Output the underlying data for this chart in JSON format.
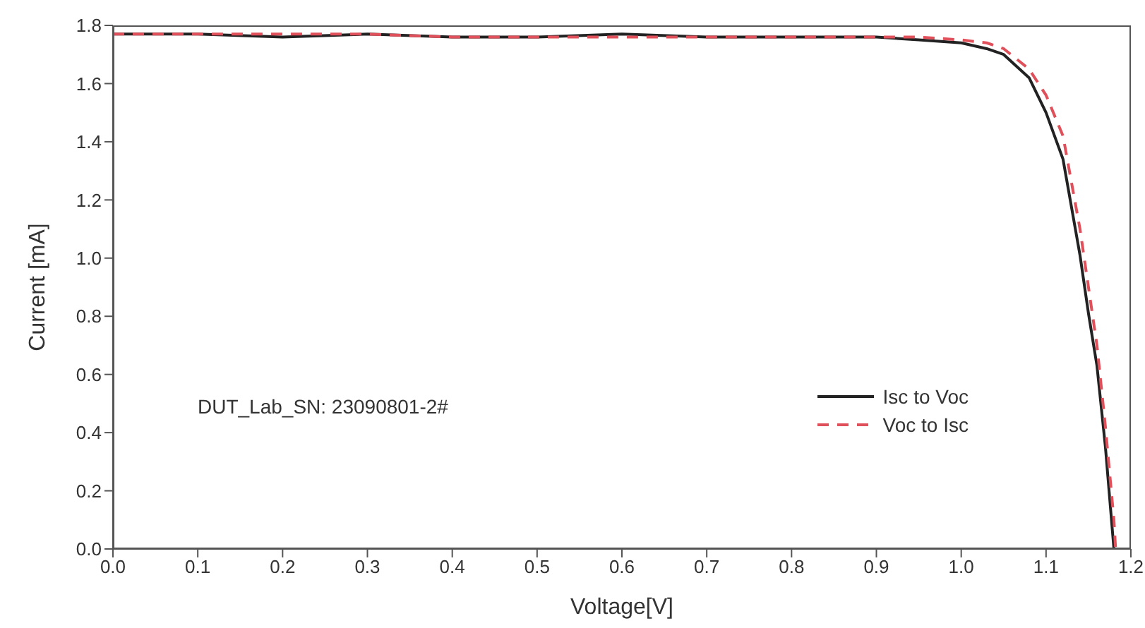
{
  "chart_data": {
    "type": "line",
    "xlabel": "Voltage[V]",
    "ylabel": "Current [mA]",
    "xlim": [
      0,
      1.2
    ],
    "xticks": [
      {
        "value": 0,
        "label": "0.0"
      },
      0.1,
      0.2,
      0.3,
      0.4,
      0.5,
      0.6,
      0.7,
      0.8,
      0.9,
      {
        "value": 1,
        "label": "1.0"
      },
      1.1,
      1.2
    ],
    "ylim": [
      0,
      1.8
    ],
    "yticks": [
      {
        "value": 0,
        "label": "0.0"
      },
      0.2,
      0.4,
      0.6,
      0.8,
      {
        "value": 1,
        "label": "1.0"
      },
      1.2,
      1.4,
      1.6,
      1.8
    ],
    "grid": false,
    "legend": "bottom right",
    "marker": "none",
    "annotations": [
      "DUT_Lab_SN: 23090801-2#"
    ],
    "series": [
      {
        "name": "Isc to Voc",
        "color": "#222222",
        "line_style": "solid",
        "x": [
          0,
          0.1,
          0.2,
          0.3,
          0.4,
          0.5,
          0.6,
          0.7,
          0.8,
          0.9,
          0.95,
          1.0,
          1.03,
          1.05,
          1.08,
          1.1,
          1.12,
          1.14,
          1.15,
          1.16,
          1.17,
          1.18
        ],
        "values": [
          1.77,
          1.77,
          1.76,
          1.77,
          1.76,
          1.76,
          1.77,
          1.76,
          1.76,
          1.76,
          1.75,
          1.74,
          1.72,
          1.7,
          1.62,
          1.5,
          1.34,
          1.01,
          0.81,
          0.63,
          0.35,
          0
        ]
      },
      {
        "name": "Voc to Isc",
        "color": "#e0505a",
        "line_style": "dashed",
        "x": [
          0,
          0.1,
          0.2,
          0.3,
          0.4,
          0.5,
          0.6,
          0.7,
          0.8,
          0.9,
          0.95,
          1.0,
          1.03,
          1.05,
          1.08,
          1.1,
          1.12,
          1.14,
          1.15,
          1.16,
          1.17,
          1.18,
          1.182
        ],
        "values": [
          1.77,
          1.77,
          1.77,
          1.77,
          1.76,
          1.76,
          1.76,
          1.76,
          1.76,
          1.76,
          1.76,
          1.75,
          1.74,
          1.72,
          1.65,
          1.56,
          1.42,
          1.1,
          0.9,
          0.7,
          0.42,
          0.1,
          0
        ]
      }
    ]
  }
}
